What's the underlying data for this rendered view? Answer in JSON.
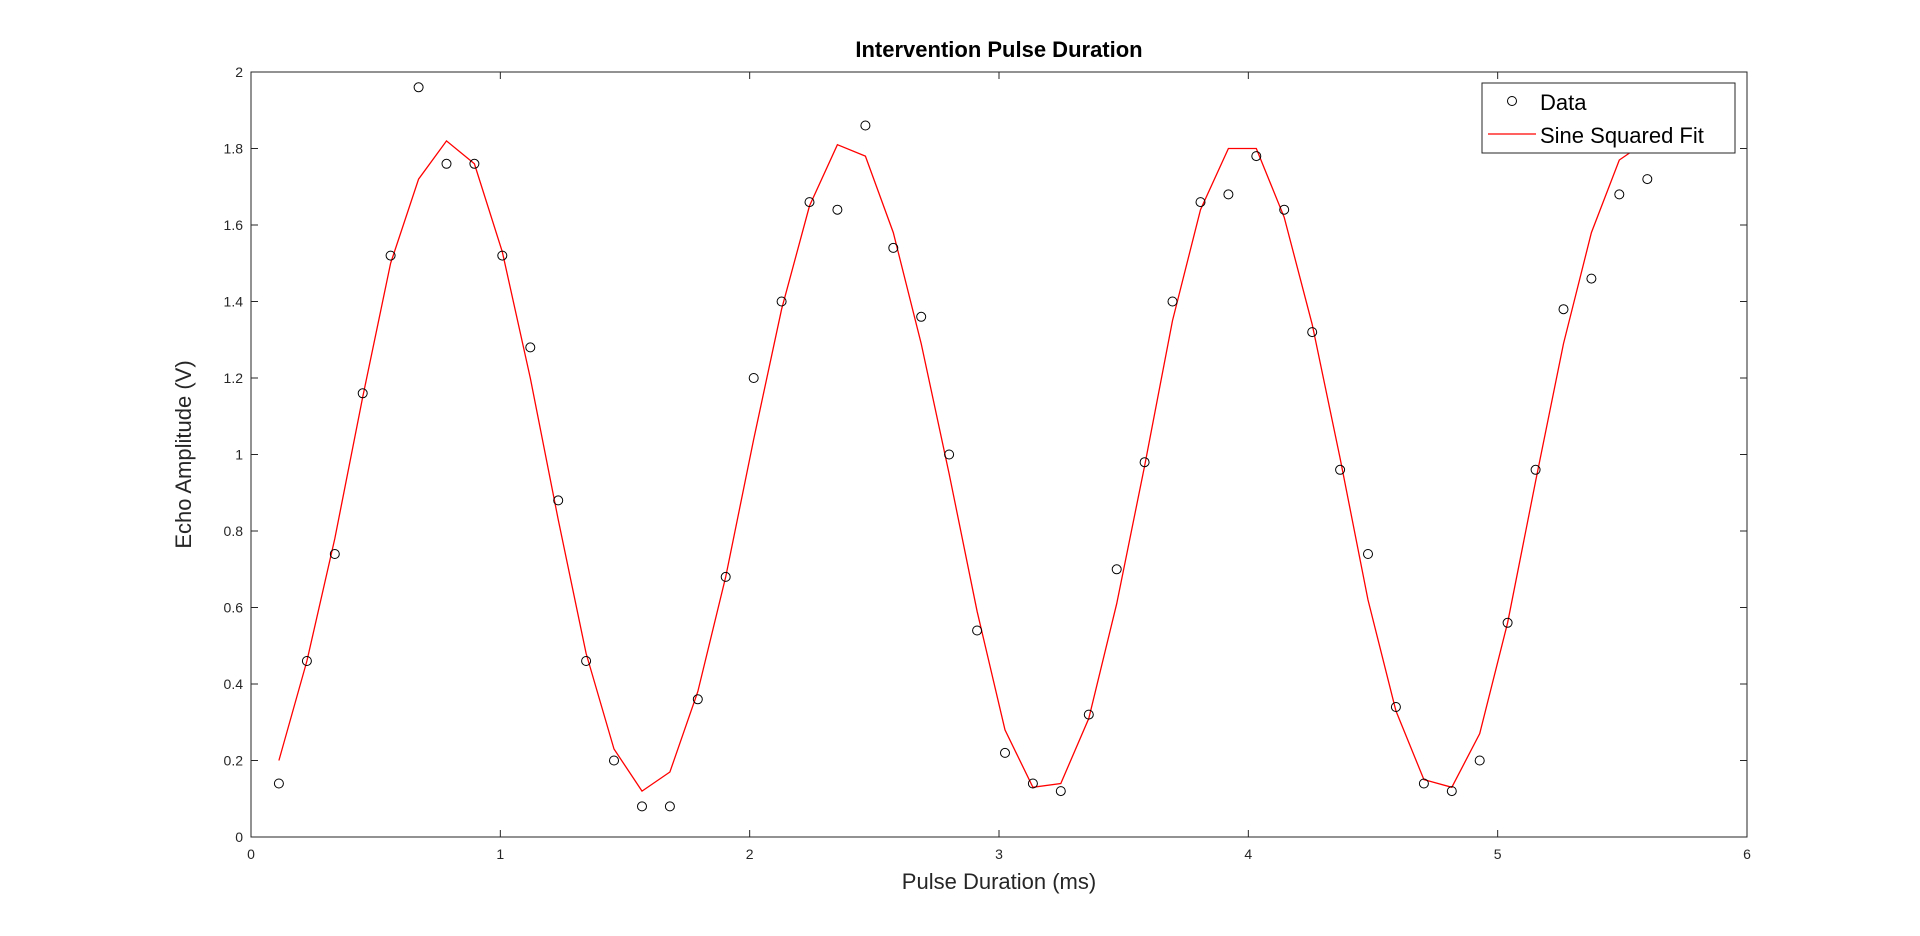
{
  "chart_data": {
    "type": "scatter",
    "title": "Intervention Pulse Duration",
    "xlabel": "Pulse Duration (ms)",
    "ylabel": "Echo Amplitude (V)",
    "xlim": [
      0,
      6
    ],
    "ylim": [
      0,
      2
    ],
    "xticks": [
      0,
      1,
      2,
      3,
      4,
      5,
      6
    ],
    "yticks": [
      0,
      0.2,
      0.4,
      0.6,
      0.8,
      1,
      1.2,
      1.4,
      1.6,
      1.8,
      2
    ],
    "xtick_labels": [
      "0",
      "1",
      "2",
      "3",
      "4",
      "5",
      "6"
    ],
    "ytick_labels": [
      "0",
      "0.2",
      "0.4",
      "0.6",
      "0.8",
      "1",
      "1.2",
      "1.4",
      "1.6",
      "1.8",
      "2"
    ],
    "grid": false,
    "legend_position": "top-right",
    "series": [
      {
        "name": "Data",
        "style": "markers",
        "marker": "circle",
        "color": "#000000",
        "x": [
          0.112,
          0.224,
          0.336,
          0.448,
          0.56,
          0.672,
          0.784,
          0.896,
          1.008,
          1.12,
          1.232,
          1.344,
          1.456,
          1.568,
          1.68,
          1.792,
          1.904,
          2.016,
          2.128,
          2.24,
          2.352,
          2.464,
          2.576,
          2.688,
          2.8,
          2.912,
          3.024,
          3.136,
          3.248,
          3.36,
          3.472,
          3.584,
          3.696,
          3.808,
          3.92,
          4.032,
          4.144,
          4.256,
          4.368,
          4.48,
          4.592,
          4.704,
          4.816,
          4.928,
          5.04,
          5.152,
          5.264,
          5.376,
          5.488,
          5.6
        ],
        "y": [
          0.14,
          0.46,
          0.74,
          1.16,
          1.52,
          1.96,
          1.76,
          1.76,
          1.52,
          1.28,
          0.88,
          0.46,
          0.2,
          0.08,
          0.08,
          0.36,
          0.68,
          1.2,
          1.4,
          1.66,
          1.64,
          1.86,
          1.54,
          1.36,
          1.0,
          0.54,
          0.22,
          0.14,
          0.12,
          0.32,
          0.7,
          0.98,
          1.4,
          1.66,
          1.68,
          1.78,
          1.64,
          1.32,
          0.96,
          0.74,
          0.34,
          0.14,
          0.12,
          0.2,
          0.56,
          0.96,
          1.38,
          1.46,
          1.68,
          1.72
        ]
      },
      {
        "name": "Sine Squared Fit",
        "style": "line",
        "color": "#ff0000",
        "x": [
          0.112,
          0.224,
          0.336,
          0.448,
          0.56,
          0.672,
          0.784,
          0.896,
          1.008,
          1.12,
          1.232,
          1.344,
          1.456,
          1.568,
          1.68,
          1.792,
          1.904,
          2.016,
          2.128,
          2.24,
          2.352,
          2.464,
          2.576,
          2.688,
          2.8,
          2.912,
          3.024,
          3.136,
          3.248,
          3.36,
          3.472,
          3.584,
          3.696,
          3.808,
          3.92,
          4.032,
          4.144,
          4.256,
          4.368,
          4.48,
          4.592,
          4.704,
          4.816,
          4.928,
          5.04,
          5.152,
          5.264,
          5.376,
          5.488,
          5.6
        ],
        "y": [
          0.2,
          0.46,
          0.78,
          1.15,
          1.5,
          1.72,
          1.82,
          1.76,
          1.53,
          1.2,
          0.83,
          0.48,
          0.23,
          0.12,
          0.17,
          0.38,
          0.68,
          1.04,
          1.38,
          1.65,
          1.81,
          1.78,
          1.58,
          1.29,
          0.95,
          0.59,
          0.28,
          0.13,
          0.14,
          0.31,
          0.61,
          0.97,
          1.35,
          1.64,
          1.8,
          1.8,
          1.62,
          1.34,
          0.99,
          0.62,
          0.33,
          0.15,
          0.13,
          0.27,
          0.56,
          0.93,
          1.29,
          1.58,
          1.77,
          1.82
        ]
      }
    ]
  }
}
